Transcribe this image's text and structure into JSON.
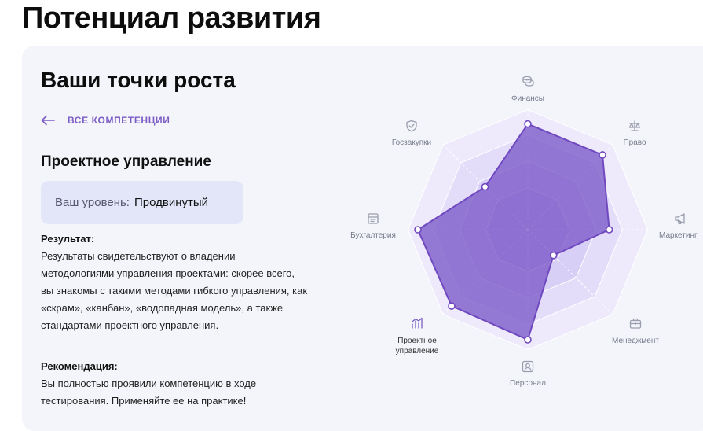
{
  "page": {
    "title": "Потенциал развития"
  },
  "card": {
    "title": "Ваши точки роста",
    "back_link": "ВСЕ КОМПЕТЕНЦИИ",
    "competency": "Проектное управление",
    "level_label": "Ваш уровень:",
    "level_value": "Продвинутый",
    "result_heading": "Результат:",
    "result_text": "Результаты свидетельствуют о владении методологиями управления проектами: скорее всего, вы знакомы с такими методами гибкого управления, как «скрам», «канбан», «водопадная модель», а также стандартами проектного управления.",
    "recommendation_heading": "Рекомендация:",
    "recommendation_text": "Вы полностью проявили компетенцию в ходе тестирования. Применяйте ее на практике!"
  },
  "radar": {
    "axes": [
      {
        "label": "Финансы",
        "icon": "coins-icon",
        "value": 0.96
      },
      {
        "label": "Право",
        "icon": "scales-icon",
        "value": 0.96
      },
      {
        "label": "Маркетинг",
        "icon": "megaphone-icon",
        "value": 0.74
      },
      {
        "label": "Менеджмент",
        "icon": "briefcase-icon",
        "value": 0.33
      },
      {
        "label": "Персонал",
        "icon": "id-card-icon",
        "value": 1.0
      },
      {
        "label": "Проектное управление",
        "label_lines": [
          "Проектное",
          "управление"
        ],
        "icon": "project-chart-icon",
        "value": 0.98,
        "active": true
      },
      {
        "label": "Бухгалтерия",
        "icon": "ledger-icon",
        "value": 1.0
      },
      {
        "label": "Госзакупки",
        "icon": "shield-check-icon",
        "value": 0.55
      }
    ],
    "colors": {
      "ring": "#e6e0fb",
      "polygon": "#7b58c8",
      "accent": "#7c5cc4"
    }
  }
}
